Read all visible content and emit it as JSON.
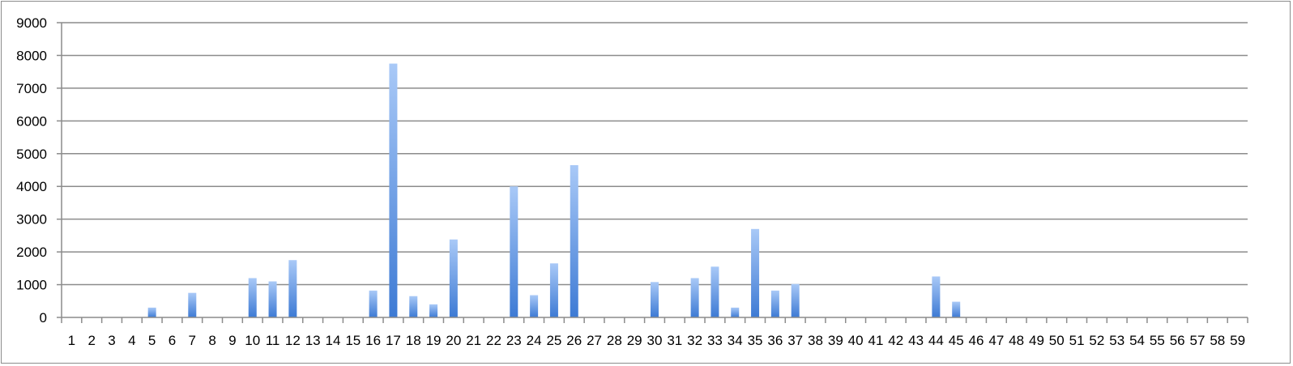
{
  "chart_data": {
    "type": "bar",
    "title": "",
    "xlabel": "",
    "ylabel": "",
    "ylim": [
      0,
      9000
    ],
    "y_ticks": [
      0,
      1000,
      2000,
      3000,
      4000,
      5000,
      6000,
      7000,
      8000,
      9000
    ],
    "grid": "horizontal",
    "legend": "none",
    "categories": [
      "1",
      "2",
      "3",
      "4",
      "5",
      "6",
      "7",
      "8",
      "9",
      "10",
      "11",
      "12",
      "13",
      "14",
      "15",
      "16",
      "17",
      "18",
      "19",
      "20",
      "21",
      "22",
      "23",
      "24",
      "25",
      "26",
      "27",
      "28",
      "29",
      "30",
      "31",
      "32",
      "33",
      "34",
      "35",
      "36",
      "37",
      "38",
      "39",
      "40",
      "41",
      "42",
      "43",
      "44",
      "45",
      "46",
      "47",
      "48",
      "49",
      "50",
      "51",
      "52",
      "53",
      "54",
      "55",
      "56",
      "57",
      "58",
      "59"
    ],
    "series": [
      {
        "values": [
          0,
          0,
          0,
          0,
          300,
          0,
          750,
          0,
          0,
          1200,
          1100,
          1750,
          0,
          0,
          0,
          820,
          7750,
          650,
          400,
          2380,
          0,
          0,
          4000,
          680,
          1650,
          4650,
          0,
          0,
          0,
          1080,
          0,
          1200,
          1550,
          300,
          2700,
          820,
          1020,
          0,
          0,
          0,
          0,
          0,
          0,
          1250,
          480,
          0,
          0,
          0,
          0,
          0,
          0,
          0,
          0,
          0,
          0,
          0,
          0,
          0,
          0
        ]
      }
    ],
    "colors": {
      "bar_light": "#a9c9f7",
      "bar_dark": "#3d7ad4",
      "grid": "#8c8c8c",
      "axis": "#8c8c8c"
    }
  }
}
